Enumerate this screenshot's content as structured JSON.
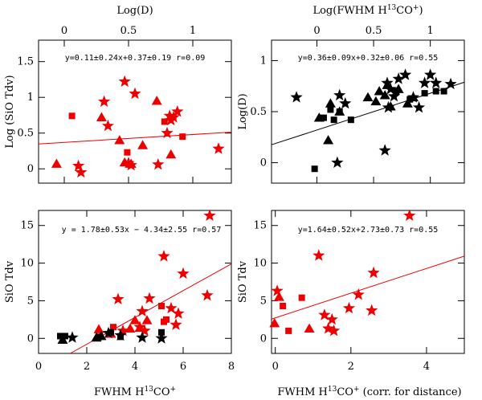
{
  "colors": {
    "red": "#ee0000",
    "black": "#000000"
  },
  "chart_data": [
    {
      "id": "top-left",
      "type": "scatter",
      "title": "",
      "xlabel": "",
      "ylabel": "Log (SiO Tdv)",
      "top_axis_label": "Log(D)",
      "xlim": [
        -0.2,
        1.3
      ],
      "ylim": [
        -0.2,
        1.8
      ],
      "xticks_labeled": [
        0,
        0.5,
        1
      ],
      "xtick_labels": [
        "0",
        "0.5",
        "1"
      ],
      "yticks_labeled": [
        0,
        0.5,
        1,
        1.5
      ],
      "ytick_labels": [
        "0",
        "0.5",
        "1",
        "1.5"
      ],
      "equation": "y=0.11±0.24x+0.37±0.19 r=0.09",
      "fit": {
        "slope": 0.11,
        "intercept": 0.37,
        "color": "red"
      },
      "series": [
        {
          "name": "stars",
          "marker": "star",
          "color": "red",
          "x": [
            0.11,
            0.13,
            0.31,
            0.34,
            0.47,
            0.5,
            0.52,
            0.55,
            0.73,
            0.8,
            0.82,
            0.83,
            0.85,
            0.88,
            1.2
          ],
          "y": [
            0.04,
            -0.05,
            0.94,
            0.6,
            1.22,
            0.08,
            0.05,
            1.05,
            0.06,
            0.5,
            0.74,
            0.68,
            0.72,
            0.8,
            0.28
          ]
        },
        {
          "name": "triangles",
          "marker": "triangle",
          "color": "red",
          "x": [
            -0.06,
            0.29,
            0.43,
            0.47,
            0.52,
            0.61,
            0.72,
            0.83
          ],
          "y": [
            0.07,
            0.72,
            0.4,
            0.09,
            0.07,
            0.33,
            0.95,
            0.2
          ]
        },
        {
          "name": "squares",
          "marker": "square",
          "color": "red",
          "x": [
            0.06,
            0.49,
            0.78,
            0.92
          ],
          "y": [
            0.74,
            0.23,
            0.66,
            0.45
          ]
        }
      ]
    },
    {
      "id": "top-right",
      "type": "scatter",
      "title": "",
      "xlabel": "",
      "ylabel": "Log(D)",
      "top_axis_label": "Log(FWHM H13CO+)",
      "xlim": [
        -0.4,
        1.3
      ],
      "ylim": [
        -0.2,
        1.2
      ],
      "xticks_labeled": [
        0,
        0.5,
        1
      ],
      "xtick_labels": [
        "0",
        "0.5",
        "1"
      ],
      "yticks_labeled": [
        0,
        0.5,
        1
      ],
      "ytick_labels": [
        "0",
        "0.5",
        "1"
      ],
      "equation": "y=0.36±0.09x+0.32±0.06 r=0.55",
      "fit": {
        "slope": 0.36,
        "intercept": 0.32,
        "color": "black"
      },
      "series": [
        {
          "name": "stars",
          "marker": "star",
          "color": "black",
          "x": [
            -0.18,
            0.18,
            0.2,
            0.25,
            0.6,
            0.62,
            0.63,
            0.65,
            0.68,
            0.72,
            0.78,
            0.85,
            0.9,
            0.95,
            1.0,
            1.05,
            1.18
          ],
          "y": [
            0.64,
            0.0,
            0.66,
            0.58,
            0.12,
            0.78,
            0.54,
            0.72,
            0.65,
            0.82,
            0.86,
            0.64,
            0.54,
            0.78,
            0.86,
            0.78,
            0.77
          ]
        },
        {
          "name": "triangles",
          "marker": "triangle",
          "color": "black",
          "x": [
            0.02,
            0.1,
            0.12,
            0.2,
            0.45,
            0.52,
            0.55,
            0.6,
            0.62,
            0.65,
            0.72,
            0.8,
            0.85
          ],
          "y": [
            0.44,
            0.22,
            0.58,
            0.5,
            0.64,
            0.6,
            0.7,
            0.66,
            0.76,
            0.55,
            0.72,
            0.58,
            0.64
          ]
        },
        {
          "name": "squares",
          "marker": "square",
          "color": "black",
          "x": [
            -0.02,
            0.06,
            0.12,
            0.15,
            0.2,
            0.3,
            0.7,
            0.82,
            0.95,
            1.05,
            1.12
          ],
          "y": [
            -0.06,
            0.44,
            0.52,
            0.42,
            0.5,
            0.42,
            0.7,
            0.62,
            0.68,
            0.7,
            0.7
          ]
        }
      ]
    },
    {
      "id": "bottom-left",
      "type": "scatter",
      "title": "",
      "xlabel": "FWHM H13CO+",
      "ylabel": "SiO Tdv",
      "xlim": [
        0,
        8
      ],
      "ylim": [
        -2,
        17
      ],
      "xticks_labeled": [
        0,
        2,
        4,
        6,
        8
      ],
      "xtick_labels": [
        "0",
        "2",
        "4",
        "6",
        "8"
      ],
      "yticks_labeled": [
        0,
        5,
        10,
        15
      ],
      "ytick_labels": [
        "0",
        "5",
        "10",
        "15"
      ],
      "equation": "y = 1.78±0.53x − 4.34±2.55 r=0.57",
      "fit": {
        "slope": 1.78,
        "intercept": -4.34,
        "color": "red"
      },
      "series": [
        {
          "name": "stars",
          "marker": "star",
          "color": "red",
          "x": [
            3.3,
            3.5,
            4.2,
            4.3,
            4.4,
            4.6,
            5.2,
            5.5,
            5.7,
            5.8,
            6.0,
            7.0,
            7.1
          ],
          "y": [
            5.2,
            1.0,
            1.5,
            3.6,
            1.0,
            5.3,
            10.9,
            4.0,
            1.8,
            3.3,
            8.6,
            5.7,
            16.3
          ]
        },
        {
          "name": "triangles",
          "marker": "triangle",
          "color": "red",
          "x": [
            2.5,
            3.0,
            3.8,
            4.0,
            4.2,
            4.5
          ],
          "y": [
            1.2,
            0.6,
            1.3,
            2.4,
            1.4,
            2.4
          ]
        },
        {
          "name": "squares",
          "marker": "square",
          "color": "red",
          "x": [
            3.1,
            5.1,
            5.2,
            5.3
          ],
          "y": [
            1.5,
            4.3,
            2.2,
            2.5
          ]
        },
        {
          "name": "stars-black",
          "marker": "star",
          "color": "black",
          "x": [
            1.4,
            2.9,
            3.4,
            4.3,
            5.1
          ],
          "y": [
            0.1,
            0.7,
            0.4,
            0.1,
            0.0
          ]
        },
        {
          "name": "triangles-black",
          "marker": "triangle",
          "color": "black",
          "x": [
            1.0,
            2.4,
            2.6
          ],
          "y": [
            -0.2,
            0.1,
            0.3
          ]
        },
        {
          "name": "squares-black",
          "marker": "square",
          "color": "black",
          "x": [
            0.9,
            1.1,
            2.5,
            3.0,
            3.4,
            5.1
          ],
          "y": [
            0.3,
            0.3,
            0.2,
            0.8,
            0.2,
            0.8
          ]
        }
      ]
    },
    {
      "id": "bottom-right",
      "type": "scatter",
      "title": "",
      "xlabel": "FWHM H13CO+ (corr. for distance)",
      "ylabel": "SiO Tdv",
      "xlim": [
        -0.1,
        5
      ],
      "ylim": [
        -2,
        17
      ],
      "xticks_labeled": [
        0,
        2,
        4
      ],
      "xtick_labels": [
        "0",
        "2",
        "4"
      ],
      "yticks_labeled": [
        0,
        5,
        10,
        15
      ],
      "ytick_labels": [
        "0",
        "5",
        "10",
        "15"
      ],
      "equation": "y=1.64±0.52x+2.73±0.73 r=0.55",
      "fit": {
        "slope": 1.64,
        "intercept": 2.73,
        "color": "red"
      },
      "series": [
        {
          "name": "stars",
          "marker": "star",
          "color": "red",
          "x": [
            0.05,
            1.15,
            1.3,
            1.4,
            1.5,
            1.55,
            1.95,
            2.2,
            2.55,
            2.6,
            3.55
          ],
          "y": [
            6.3,
            11.0,
            3.1,
            1.3,
            2.5,
            1.0,
            4.0,
            5.8,
            3.7,
            8.7,
            16.3
          ]
        },
        {
          "name": "triangles",
          "marker": "triangle",
          "color": "red",
          "x": [
            -0.02,
            0.1,
            0.9
          ],
          "y": [
            2.0,
            5.5,
            1.3
          ]
        },
        {
          "name": "squares",
          "marker": "square",
          "color": "red",
          "x": [
            0.2,
            0.35,
            0.7
          ],
          "y": [
            4.3,
            1.0,
            5.4
          ]
        }
      ]
    }
  ]
}
